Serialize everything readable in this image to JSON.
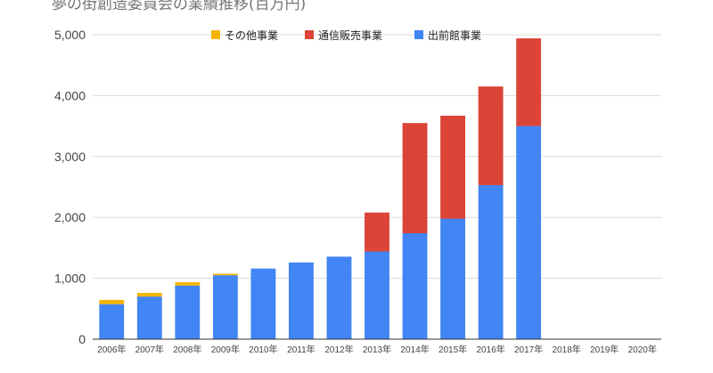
{
  "chart_data": {
    "type": "bar",
    "stacked": true,
    "title": "夢の街創造委員会の業績推移(百万円)",
    "categories": [
      "2006年",
      "2007年",
      "2008年",
      "2009年",
      "2010年",
      "2011年",
      "2012年",
      "2013年",
      "2014年",
      "2015年",
      "2016年",
      "2017年",
      "2018年",
      "2019年",
      "2020年"
    ],
    "series": [
      {
        "name": "出前館事業",
        "color": "#4285f4",
        "values": [
          575,
          700,
          880,
          1050,
          1160,
          1260,
          1355,
          1440,
          1740,
          1980,
          2530,
          3500,
          0,
          0,
          0
        ]
      },
      {
        "name": "通信販売事業",
        "color": "#db4437",
        "values": [
          0,
          0,
          0,
          0,
          0,
          0,
          0,
          640,
          1810,
          1690,
          1620,
          1440,
          0,
          0,
          0
        ]
      },
      {
        "name": "その他事業",
        "color": "#f4b400",
        "values": [
          70,
          60,
          55,
          25,
          0,
          0,
          0,
          0,
          0,
          0,
          0,
          0,
          0,
          0,
          0
        ]
      }
    ],
    "legend_order": [
      "その他事業",
      "通信販売事業",
      "出前館事業"
    ],
    "legend_position": "top",
    "ylim": [
      0,
      5000
    ],
    "yticks": [
      0,
      1000,
      2000,
      3000,
      4000,
      5000
    ],
    "ytick_labels": [
      "0",
      "1,000",
      "2,000",
      "3,000",
      "4,000",
      "5,000"
    ],
    "grid": true
  }
}
